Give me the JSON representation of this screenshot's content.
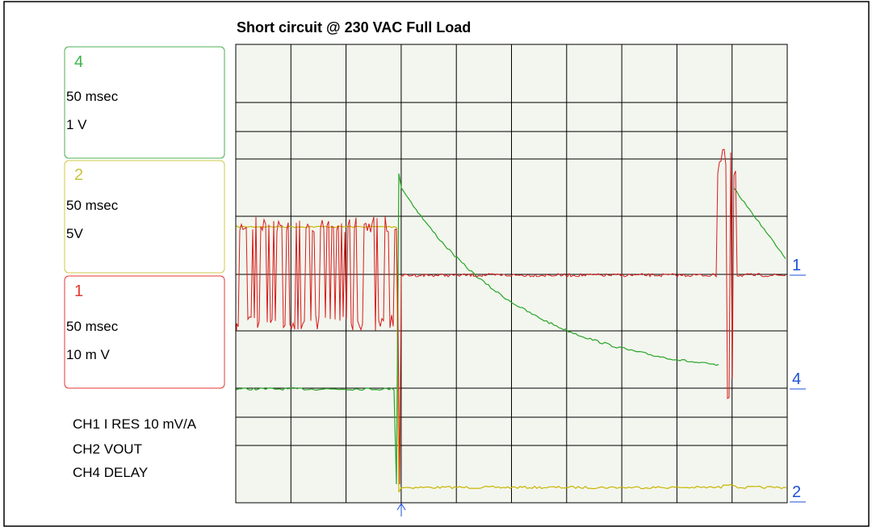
{
  "title": "Short circuit @ 230 VAC Full Load",
  "channels": [
    {
      "id": "4",
      "timebase": "50 msec",
      "scale": "1 V"
    },
    {
      "id": "2",
      "timebase": "50 msec",
      "scale": "5V"
    },
    {
      "id": "1",
      "timebase": "50 msec",
      "scale": "10 m V"
    }
  ],
  "notes": [
    "CH1 I RES 10 mV/A",
    "CH2 VOUT",
    "CH4 DELAY"
  ],
  "markers": [
    "1",
    "4",
    "2"
  ]
}
